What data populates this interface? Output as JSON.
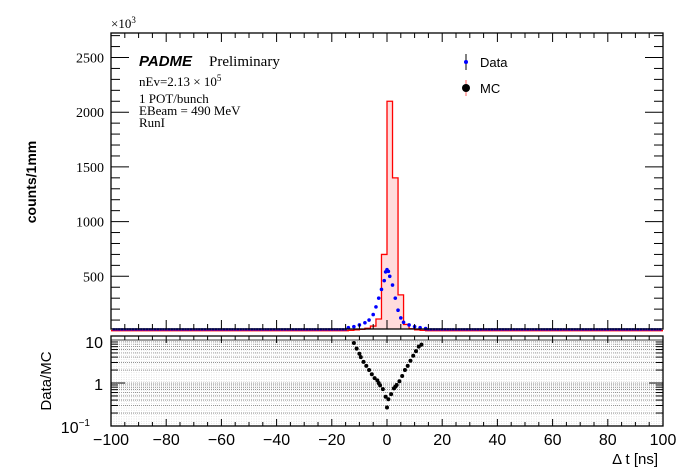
{
  "chart_data": [
    {
      "type": "bar",
      "panel": "main",
      "ylabel": "counts/1mm",
      "exponent_label": "×10",
      "exponent_power": "3",
      "yticks": [
        500,
        1000,
        1500,
        2000,
        2500
      ],
      "ytick_labels": [
        "500",
        "1000",
        "1500",
        "2000",
        "2500"
      ],
      "ylim": [
        0,
        2720
      ],
      "xlim": [
        -100,
        100
      ],
      "annotation": {
        "experiment": "PADME",
        "status": "Preliminary",
        "nev_text": "nEv=2.13 ",
        "nev_times": "× 10",
        "nev_power": "5",
        "line2": "1 POT/bunch",
        "line3": "EBeam = 490 MeV",
        "line4": "RunI"
      },
      "legend": {
        "placement": "top-right",
        "entries": [
          "Data",
          "MC"
        ]
      },
      "colors": {
        "mc_line": "#ff0000",
        "mc_fill": "#ffdcdc",
        "data": "#0000ff"
      },
      "mc_series": {
        "name": "MC",
        "x_centers": [
          -13,
          -11,
          -9,
          -7,
          -5,
          -3,
          -1,
          1,
          3,
          5,
          7,
          9,
          11,
          13
        ],
        "values": [
          6,
          10,
          15,
          25,
          45,
          110,
          700,
          2100,
          1400,
          330,
          60,
          20,
          10,
          6
        ],
        "baseline": 3
      },
      "data_series": {
        "name": "Data",
        "x": [
          -14,
          -12,
          -10,
          -8,
          -6.5,
          -5,
          -4,
          -3,
          -2,
          -1,
          -0.5,
          0,
          0.5,
          1,
          2,
          3,
          4,
          5,
          6,
          8,
          10,
          12,
          14
        ],
        "values": [
          30,
          40,
          55,
          75,
          100,
          150,
          220,
          300,
          380,
          460,
          540,
          560,
          545,
          500,
          420,
          300,
          190,
          120,
          80,
          55,
          40,
          30,
          22
        ],
        "tail_level": 15
      }
    },
    {
      "type": "scatter",
      "panel": "ratio",
      "ylabel": "Data/MC",
      "xlabel": "Δ t [ns]",
      "yscale": "log",
      "ylim": [
        0.1,
        10
      ],
      "ytick_labels": [
        "10",
        "1",
        "10"
      ],
      "ytick_minus1": "−1",
      "xlim": [
        -100,
        100
      ],
      "xticks": [
        -100,
        -80,
        -60,
        -40,
        -20,
        0,
        20,
        40,
        60,
        80,
        100
      ],
      "xtick_labels": [
        "−100",
        "−80",
        "−60",
        "−40",
        "−20",
        "0",
        "20",
        "40",
        "60",
        "80",
        "100"
      ],
      "grid": true,
      "x": [
        -12,
        -11,
        -10,
        -9.5,
        -8.5,
        -7.5,
        -6.5,
        -5.5,
        -4.5,
        -3.5,
        -3,
        -2.5,
        -1.5,
        -0.5,
        0,
        0.5,
        1.5,
        2.5,
        3,
        3.5,
        4.5,
        5.5,
        6.5,
        7.5,
        8.5,
        9.5,
        10.5,
        11.5,
        12.5
      ],
      "values": [
        8.5,
        6.3,
        4.8,
        4.0,
        3.1,
        2.5,
        2.0,
        1.6,
        1.3,
        1.15,
        1.0,
        0.88,
        0.72,
        0.48,
        0.27,
        0.42,
        0.55,
        0.75,
        0.82,
        0.9,
        1.1,
        1.45,
        2.0,
        2.5,
        3.3,
        4.3,
        5.5,
        7.0,
        7.8
      ]
    }
  ]
}
